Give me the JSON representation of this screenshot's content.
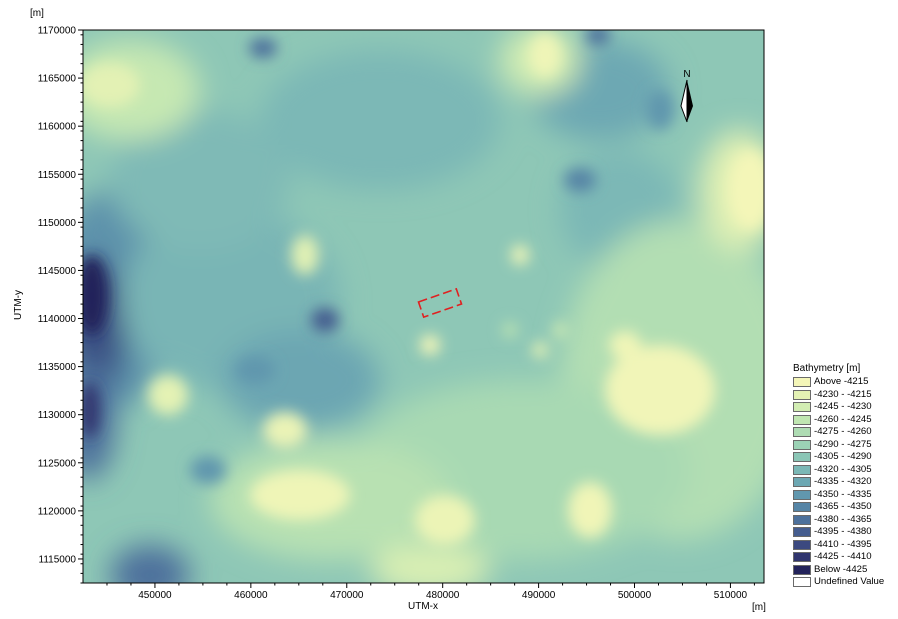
{
  "map": {
    "axis_unit_top": "[m]",
    "axis_unit_right": "[m]",
    "x_axis_label": "UTM-x",
    "y_axis_label": "UTM-y",
    "x_range": [
      442500,
      513500
    ],
    "y_range": [
      1112500,
      1170000
    ],
    "x_ticks": [
      450000,
      460000,
      470000,
      480000,
      490000,
      500000,
      510000
    ],
    "y_ticks": [
      1115000,
      1120000,
      1125000,
      1130000,
      1135000,
      1140000,
      1145000,
      1150000,
      1155000,
      1160000,
      1165000,
      1170000
    ],
    "north_arrow_label": "N",
    "study_area_outline_color": "#e02020"
  },
  "legend": {
    "title": "Bathymetry [m]",
    "items": [
      {
        "label": "Above  -4215",
        "color": "#f4f6b8"
      },
      {
        "label": "-4230 - -4215",
        "color": "#e4f2b4"
      },
      {
        "label": "-4245 - -4230",
        "color": "#d2edb3"
      },
      {
        "label": "-4260 - -4245",
        "color": "#c0e6b2"
      },
      {
        "label": "-4275 - -4260",
        "color": "#aedcb3"
      },
      {
        "label": "-4290 - -4275",
        "color": "#9bd2b5"
      },
      {
        "label": "-4305 - -4290",
        "color": "#8bc6b6"
      },
      {
        "label": "-4320 - -4305",
        "color": "#7bb8b6"
      },
      {
        "label": "-4335 - -4320",
        "color": "#6da8b3"
      },
      {
        "label": "-4350 - -4335",
        "color": "#6197ae"
      },
      {
        "label": "-4365 - -4350",
        "color": "#5685a6"
      },
      {
        "label": "-4380 - -4365",
        "color": "#4d719c"
      },
      {
        "label": "-4395 - -4380",
        "color": "#455d8f"
      },
      {
        "label": "-4410 - -4395",
        "color": "#3c4980"
      },
      {
        "label": "-4425 - -4410",
        "color": "#30356e"
      },
      {
        "label": "Below  -4425",
        "color": "#22225a"
      },
      {
        "label": "Undefined Value",
        "color": "#ffffff"
      }
    ]
  }
}
